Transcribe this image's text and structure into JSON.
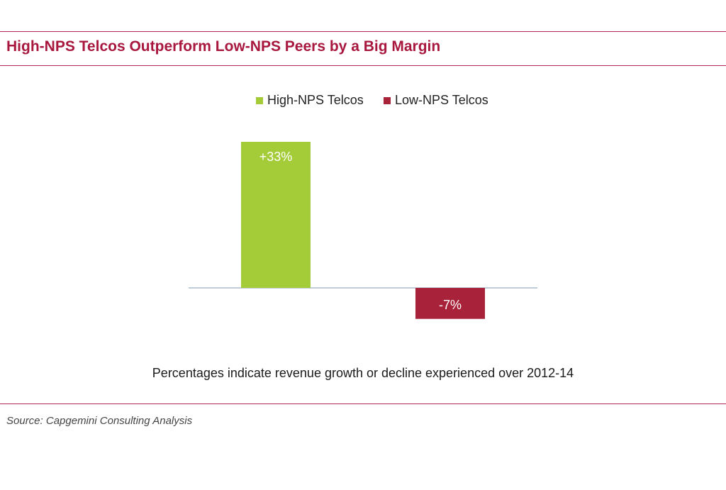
{
  "title": "High-NPS Telcos Outperform Low-NPS Peers by a Big Margin",
  "note": "Percentages indicate revenue growth or decline experienced over 2012-14",
  "source": "Source: Capgemini Consulting Analysis",
  "colors": {
    "accent": "#a8173e",
    "rule": "#b5255a",
    "high": "#a4cc39",
    "low": "#a8223a",
    "baseline": "#7f9bb5"
  },
  "legend": {
    "high": "High-NPS Telcos",
    "low": "Low-NPS Telcos"
  },
  "chart_data": {
    "type": "bar",
    "categories": [
      "High-NPS Telcos",
      "Low-NPS Telcos"
    ],
    "series": [
      {
        "name": "High-NPS Telcos",
        "values": [
          33,
          null
        ]
      },
      {
        "name": "Low-NPS Telcos",
        "values": [
          null,
          -7
        ]
      }
    ],
    "data_labels": [
      "+33%",
      "-7%"
    ],
    "ylim": [
      -7,
      33
    ],
    "grid": false,
    "legend_position": "top-center",
    "xlabel": "",
    "ylabel": ""
  }
}
